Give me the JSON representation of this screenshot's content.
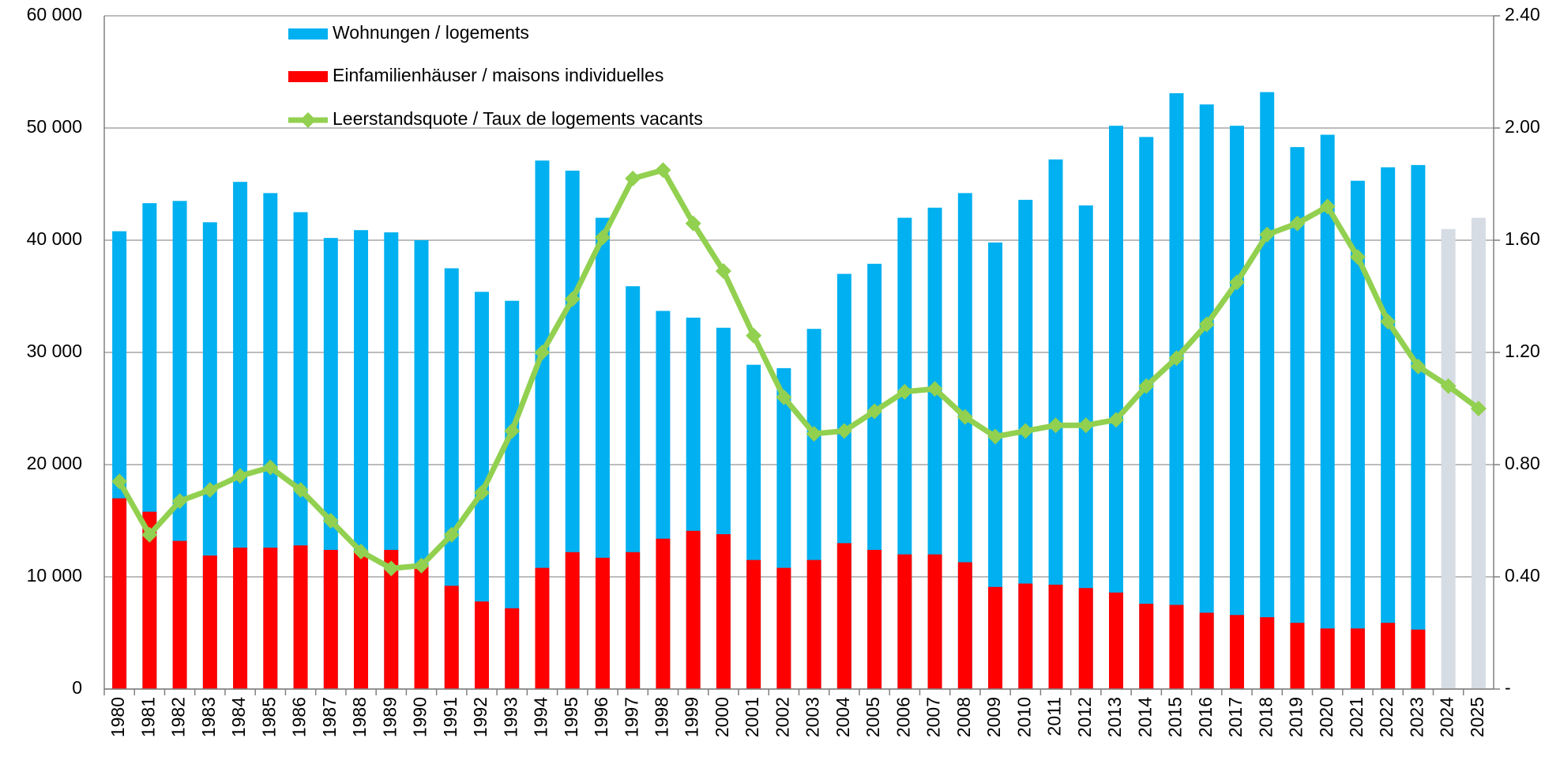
{
  "chart_data": {
    "type": "bar",
    "categories": [
      "1980",
      "1981",
      "1982",
      "1983",
      "1984",
      "1985",
      "1986",
      "1987",
      "1988",
      "1989",
      "1990",
      "1991",
      "1992",
      "1993",
      "1994",
      "1995",
      "1996",
      "1997",
      "1998",
      "1999",
      "2000",
      "2001",
      "2002",
      "2003",
      "2004",
      "2005",
      "2006",
      "2007",
      "2008",
      "2009",
      "2010",
      "2011",
      "2012",
      "2013",
      "2014",
      "2015",
      "2016",
      "2017",
      "2018",
      "2019",
      "2020",
      "2021",
      "2022",
      "2023",
      "2024",
      "2025"
    ],
    "series": [
      {
        "name": "Wohnungen / logements",
        "type": "bar",
        "color": "#00b0f0",
        "point_colors": {
          "44": "#d6dce4",
          "45": "#d6dce4"
        },
        "values": [
          40800,
          43300,
          43500,
          41600,
          45200,
          44200,
          42500,
          40200,
          40900,
          40700,
          40000,
          37500,
          35400,
          34600,
          47100,
          46200,
          42000,
          35900,
          33700,
          33100,
          32200,
          28900,
          28600,
          32100,
          37000,
          37900,
          42000,
          42900,
          44200,
          39800,
          43600,
          47200,
          43100,
          50200,
          49200,
          53100,
          52100,
          50200,
          53200,
          48300,
          49400,
          45300,
          46500,
          46700,
          41000,
          42000
        ]
      },
      {
        "name": "Einfamilienhäuser / maisons individuelles",
        "type": "bar",
        "color": "#ff0000",
        "values": [
          17000,
          15800,
          13200,
          11900,
          12600,
          12600,
          12800,
          12400,
          12300,
          12400,
          11000,
          9200,
          7800,
          7200,
          10800,
          12200,
          11700,
          12200,
          13400,
          14100,
          13800,
          11500,
          10800,
          11500,
          13000,
          12400,
          12000,
          12000,
          11300,
          9100,
          9400,
          9300,
          9000,
          8600,
          7600,
          7500,
          6800,
          6600,
          6400,
          5900,
          5400,
          5400,
          5900,
          5300,
          null,
          null
        ]
      },
      {
        "name": "Leerstandsquote / Taux de logements vacants",
        "type": "line",
        "axis": "y2",
        "color": "#92d050",
        "values": [
          0.74,
          0.55,
          0.67,
          0.71,
          0.76,
          0.79,
          0.71,
          0.6,
          0.49,
          0.43,
          0.44,
          0.55,
          0.7,
          0.92,
          1.2,
          1.39,
          1.61,
          1.82,
          1.85,
          1.66,
          1.49,
          1.26,
          1.04,
          0.91,
          0.92,
          0.99,
          1.06,
          1.07,
          0.97,
          0.9,
          0.92,
          0.94,
          0.94,
          0.96,
          1.08,
          1.18,
          1.3,
          1.45,
          1.62,
          1.66,
          1.72,
          1.54,
          1.31,
          1.15,
          1.08,
          1.0
        ]
      }
    ],
    "ylim": [
      0,
      60000
    ],
    "yticks": [
      0,
      {
        "value": 10000,
        "label": "10 000"
      },
      {
        "value": 20000,
        "label": "20 000"
      },
      {
        "value": 30000,
        "label": "30 000"
      },
      {
        "value": 40000,
        "label": "40 000"
      },
      {
        "value": 50000,
        "label": "50 000"
      },
      {
        "value": 60000,
        "label": "60 000"
      }
    ],
    "y2lim": [
      0,
      2.4
    ],
    "y2ticks": [
      {
        "value": 0,
        "label": "-"
      },
      {
        "value": 0.4,
        "label": "0.40"
      },
      {
        "value": 0.8,
        "label": "0.80"
      },
      {
        "value": 1.2,
        "label": "1.20"
      },
      {
        "value": 1.6,
        "label": "1.60"
      },
      {
        "value": 2.0,
        "label": "2.00"
      },
      {
        "value": 2.4,
        "label": "2.40"
      }
    ],
    "grid": true,
    "legend": "top-left"
  }
}
